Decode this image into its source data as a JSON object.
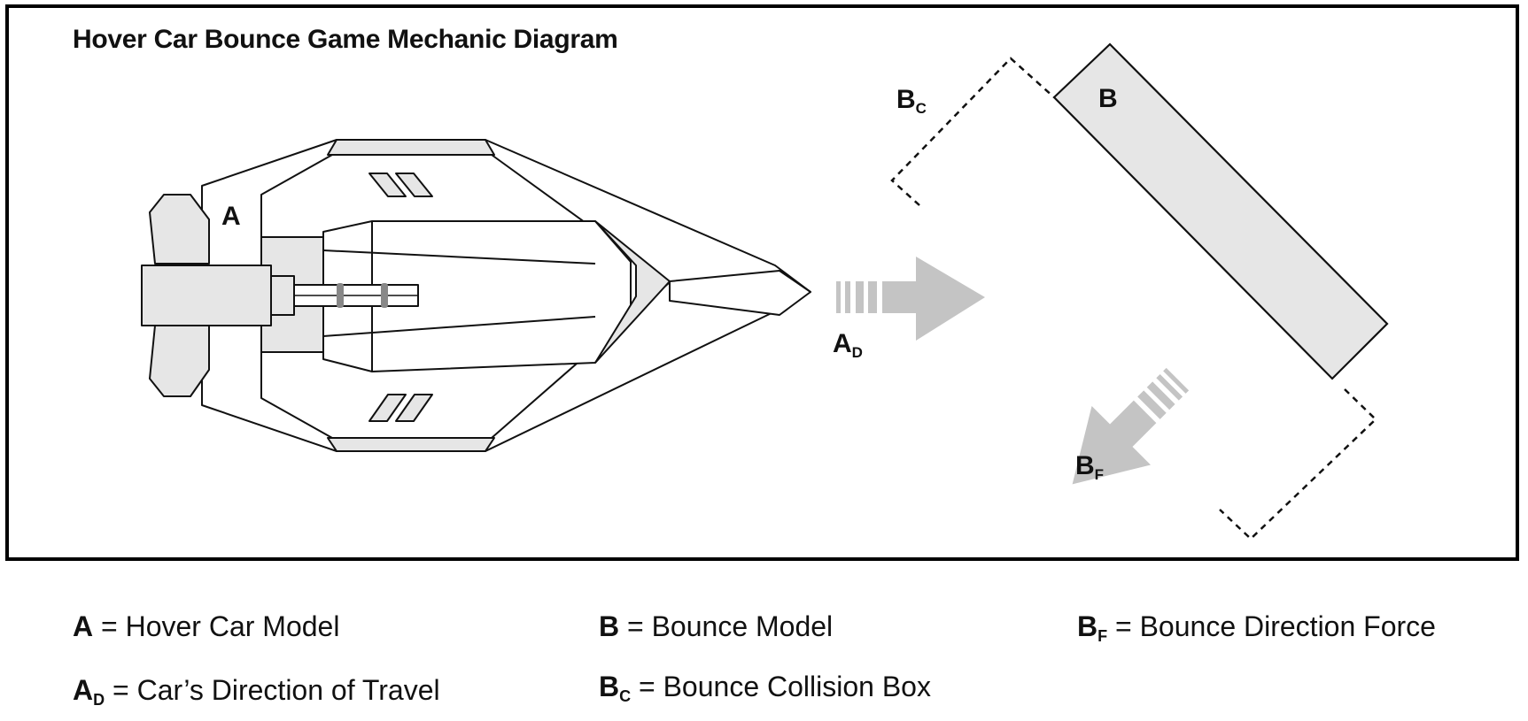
{
  "diagram": {
    "title": "Hover Car Bounce Game Mechanic Diagram",
    "labels": {
      "car": "A",
      "car_direction_main": "A",
      "car_direction_sub": "D",
      "bounce": "B",
      "collision_main": "B",
      "collision_sub": "C",
      "force_main": "B",
      "force_sub": "F"
    }
  },
  "legend": {
    "items": [
      {
        "key": "A",
        "sub": "",
        "description": "= Hover Car Model"
      },
      {
        "key": "B",
        "sub": "",
        "description": "= Bounce Model"
      },
      {
        "key": "B",
        "sub": "F",
        "description": "= Bounce Direction Force"
      },
      {
        "key": "A",
        "sub": "D",
        "description": "= Car’s Direction of Travel"
      },
      {
        "key": "B",
        "sub": "C",
        "description": "= Bounce Collision Box"
      }
    ]
  },
  "colors": {
    "outline": "#111111",
    "shaded": "#e6e6e6",
    "arrow": "#c4c4c4",
    "background": "#ffffff"
  }
}
